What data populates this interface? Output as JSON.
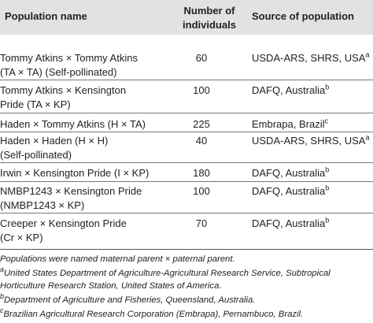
{
  "table": {
    "headers": {
      "population": "Population name",
      "number_line1": "Number of",
      "number_line2": "individuals",
      "source": "Source of population"
    },
    "rows": [
      {
        "name_line1": "Tommy Atkins × Tommy Atkins",
        "name_line2": "(TA × TA) (Self-pollinated)",
        "number": "60",
        "source": "USDA-ARS, SHRS, USA",
        "source_sup": "a"
      },
      {
        "name_line1": "Tommy Atkins × Kensington",
        "name_line2": "Pride (TA × KP)",
        "number": "100",
        "source": "DAFQ, Australia",
        "source_sup": "b"
      },
      {
        "name_line1": "Haden × Tommy Atkins (H × TA)",
        "name_line2": "",
        "number": "225",
        "source": "Embrapa, Brazil",
        "source_sup": "c"
      },
      {
        "name_line1": "Haden × Haden (H × H)",
        "name_line2": "(Self-pollinated)",
        "number": "40",
        "source": "USDA-ARS, SHRS, USA",
        "source_sup": "a"
      },
      {
        "name_line1": "Irwin × Kensington Pride (I × KP)",
        "name_line2": "",
        "number": "180",
        "source": "DAFQ, Australia",
        "source_sup": "b"
      },
      {
        "name_line1": "NMBP1243 × Kensington Pride",
        "name_line2": "(NMBP1243 × KP)",
        "number": "100",
        "source": "DAFQ, Australia",
        "source_sup": "b"
      },
      {
        "name_line1": "Creeper × Kensington Pride",
        "name_line2": "(Cr × KP)",
        "number": "70",
        "source": "DAFQ, Australia",
        "source_sup": "b"
      }
    ]
  },
  "footnotes": {
    "intro": "Populations were named maternal parent × paternal parent.",
    "a_mark": "a",
    "a_line1": "United States Department of Agriculture-Agricultural Research Service, Subtropical",
    "a_line2": "Horticulture Research Station, United States of America.",
    "b_mark": "b",
    "b_text": "Department of Agriculture and Fisheries, Queensland, Australia.",
    "c_mark": "c",
    "c_text": "Brazilian Agricultural Research Corporation (Embrapa), Pernambuco, Brazil."
  }
}
